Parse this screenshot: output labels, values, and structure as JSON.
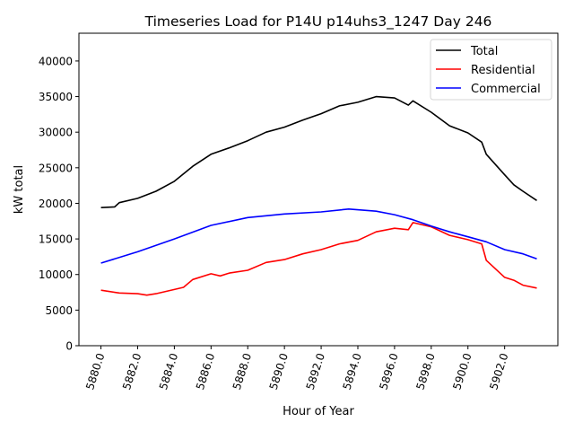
{
  "chart_data": {
    "type": "line",
    "title": "Timeseries Load for P14U p14uhs3_1247  Day 246",
    "xlabel": "Hour of Year",
    "ylabel": "kW total",
    "xlim": [
      5878.8,
      5904.9
    ],
    "ylim": [
      0,
      43900
    ],
    "xticks": [
      5880,
      5882,
      5884,
      5886,
      5888,
      5890,
      5892,
      5894,
      5896,
      5898,
      5900,
      5902
    ],
    "xtick_labels": [
      "5880.0",
      "5882.0",
      "5884.0",
      "5886.0",
      "5888.0",
      "5890.0",
      "5892.0",
      "5894.0",
      "5896.0",
      "5898.0",
      "5900.0",
      "5902.0"
    ],
    "yticks": [
      0,
      5000,
      10000,
      15000,
      20000,
      25000,
      30000,
      35000,
      40000
    ],
    "ytick_labels": [
      "0",
      "5000",
      "10000",
      "15000",
      "20000",
      "25000",
      "30000",
      "35000",
      "40000"
    ],
    "grid": false,
    "legend_position": "top-right",
    "series": [
      {
        "name": "Total",
        "color": "#000000",
        "x": [
          5880,
          5880.75,
          5881,
          5882,
          5883,
          5884,
          5885,
          5886,
          5887,
          5888,
          5889,
          5890,
          5891,
          5892,
          5893,
          5894,
          5895,
          5896,
          5896.75,
          5897,
          5898,
          5899,
          5900,
          5900.75,
          5901,
          5902,
          5902.5,
          5903,
          5903.75
        ],
        "y": [
          19400,
          19500,
          20100,
          20700,
          21700,
          23100,
          25200,
          26900,
          27800,
          28800,
          30000,
          30700,
          31700,
          32600,
          33700,
          34200,
          35000,
          34800,
          33800,
          34400,
          32800,
          30900,
          29900,
          28600,
          26900,
          24000,
          22600,
          21700,
          20400
        ]
      },
      {
        "name": "Residential",
        "color": "#ff0000",
        "x": [
          5880,
          5881,
          5882,
          5882.5,
          5883,
          5884,
          5884.5,
          5885,
          5886,
          5886.5,
          5887,
          5888,
          5889,
          5890,
          5891,
          5892,
          5893,
          5894,
          5895,
          5896,
          5896.75,
          5897,
          5898,
          5899,
          5900,
          5900.75,
          5901,
          5902,
          5902.5,
          5903,
          5903.75
        ],
        "y": [
          7800,
          7400,
          7300,
          7100,
          7300,
          7900,
          8200,
          9300,
          10100,
          9800,
          10200,
          10600,
          11700,
          12100,
          12900,
          13500,
          14300,
          14800,
          16000,
          16500,
          16300,
          17300,
          16700,
          15500,
          14900,
          14300,
          12000,
          9600,
          9200,
          8500,
          8100
        ]
      },
      {
        "name": "Commercial",
        "color": "#0000ff",
        "x": [
          5880,
          5882,
          5884,
          5886,
          5888,
          5890,
          5892,
          5893.5,
          5895,
          5896,
          5897,
          5898,
          5899,
          5900,
          5901,
          5902,
          5903,
          5903.75
        ],
        "y": [
          11600,
          13200,
          15000,
          16900,
          18000,
          18500,
          18800,
          19200,
          18900,
          18400,
          17700,
          16800,
          16000,
          15300,
          14600,
          13500,
          12900,
          12200
        ]
      }
    ]
  }
}
